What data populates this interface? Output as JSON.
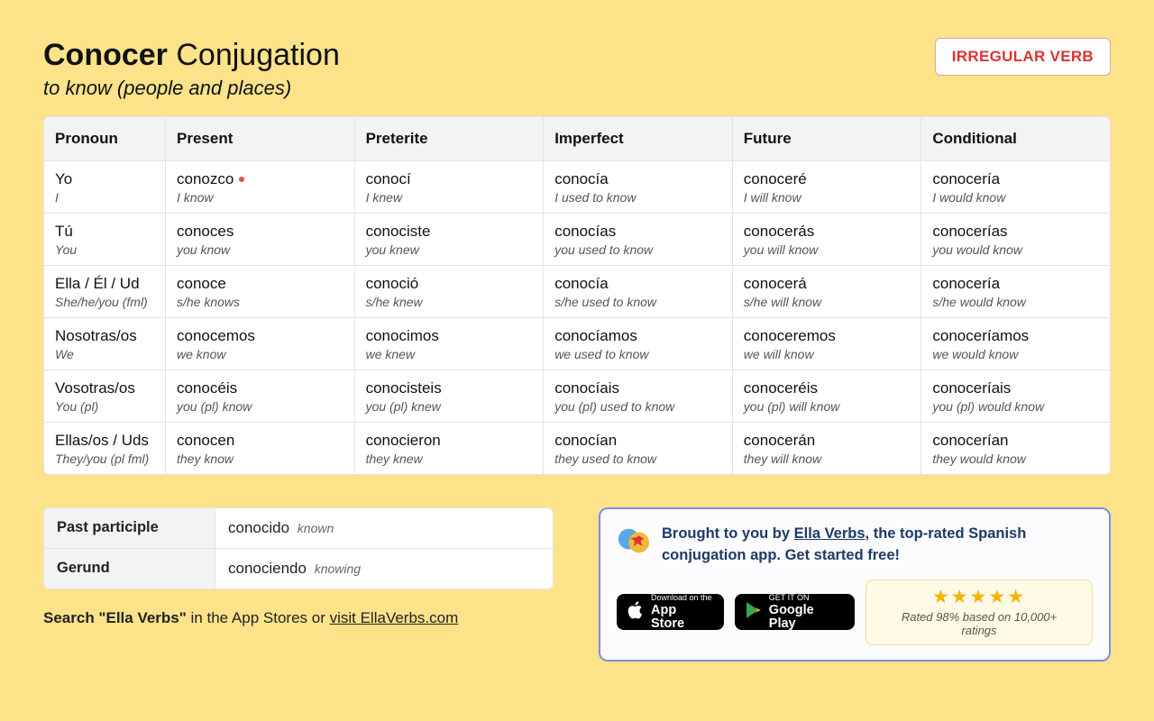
{
  "header": {
    "verb": "Conocer",
    "title_suffix": "Conjugation",
    "subtitle": "to know (people and places)",
    "badge": "IRREGULAR VERB"
  },
  "columns": [
    "Pronoun",
    "Present",
    "Preterite",
    "Imperfect",
    "Future",
    "Conditional"
  ],
  "rows": [
    {
      "pronoun_es": "Yo",
      "pronoun_en": "I",
      "cells": [
        {
          "es": "conozco",
          "en": "I know",
          "irregular": true
        },
        {
          "es": "conocí",
          "en": "I knew"
        },
        {
          "es": "conocía",
          "en": "I used to know"
        },
        {
          "es": "conoceré",
          "en": "I will know"
        },
        {
          "es": "conocería",
          "en": "I would know"
        }
      ]
    },
    {
      "pronoun_es": "Tú",
      "pronoun_en": "You",
      "cells": [
        {
          "es": "conoces",
          "en": "you know"
        },
        {
          "es": "conociste",
          "en": "you knew"
        },
        {
          "es": "conocías",
          "en": "you used to know"
        },
        {
          "es": "conocerás",
          "en": "you will know"
        },
        {
          "es": "conocerías",
          "en": "you would know"
        }
      ]
    },
    {
      "pronoun_es": "Ella / Él / Ud",
      "pronoun_en": "She/he/you (fml)",
      "cells": [
        {
          "es": "conoce",
          "en": "s/he knows"
        },
        {
          "es": "conoció",
          "en": "s/he knew"
        },
        {
          "es": "conocía",
          "en": "s/he used to know"
        },
        {
          "es": "conocerá",
          "en": "s/he will know"
        },
        {
          "es": "conocería",
          "en": "s/he would know"
        }
      ]
    },
    {
      "pronoun_es": "Nosotras/os",
      "pronoun_en": "We",
      "cells": [
        {
          "es": "conocemos",
          "en": "we know"
        },
        {
          "es": "conocimos",
          "en": "we knew"
        },
        {
          "es": "conocíamos",
          "en": "we used to know"
        },
        {
          "es": "conoceremos",
          "en": "we will know"
        },
        {
          "es": "conoceríamos",
          "en": "we would know"
        }
      ]
    },
    {
      "pronoun_es": "Vosotras/os",
      "pronoun_en": "You (pl)",
      "cells": [
        {
          "es": "conocéis",
          "en": "you (pl) know"
        },
        {
          "es": "conocisteis",
          "en": "you (pl) knew"
        },
        {
          "es": "conocíais",
          "en": "you (pl) used to know"
        },
        {
          "es": "conoceréis",
          "en": "you (pl) will know"
        },
        {
          "es": "conoceríais",
          "en": "you (pl) would know"
        }
      ]
    },
    {
      "pronoun_es": "Ellas/os / Uds",
      "pronoun_en": "They/you (pl fml)",
      "cells": [
        {
          "es": "conocen",
          "en": "they know"
        },
        {
          "es": "conocieron",
          "en": "they knew"
        },
        {
          "es": "conocían",
          "en": "they used to know"
        },
        {
          "es": "conocerán",
          "en": "they will know"
        },
        {
          "es": "conocerían",
          "en": "they would know"
        }
      ]
    }
  ],
  "forms": [
    {
      "label": "Past participle",
      "es": "conocido",
      "gloss": "known"
    },
    {
      "label": "Gerund",
      "es": "conociendo",
      "gloss": "knowing"
    }
  ],
  "search_line": {
    "prefix": "Search \"Ella Verbs\"",
    "middle": " in the App Stores or ",
    "link": "visit EllaVerbs.com"
  },
  "promo": {
    "text_before": "Brought to you by ",
    "app_name": "Ella Verbs",
    "text_after": ", the top-rated Spanish conjugation app. Get started free!",
    "appstore_small": "Download on the",
    "appstore_big": "App Store",
    "play_small": "GET IT ON",
    "play_big": "Google Play",
    "rating_text": "Rated 98% based on 10,000+ ratings"
  },
  "styling": {
    "page_bg": "#fce38a",
    "table_border": "#e3e3e3",
    "header_row_bg": "#f3f3f3",
    "badge_border": "#e9a0a0",
    "badge_text": "#d33",
    "irregular_dot": "#e94f37",
    "promo_border": "#7a8fe0",
    "promo_text_color": "#1e3a68",
    "star_color": "#f5b400",
    "rating_bg": "#fffae6",
    "rating_border": "#eadf9e"
  }
}
